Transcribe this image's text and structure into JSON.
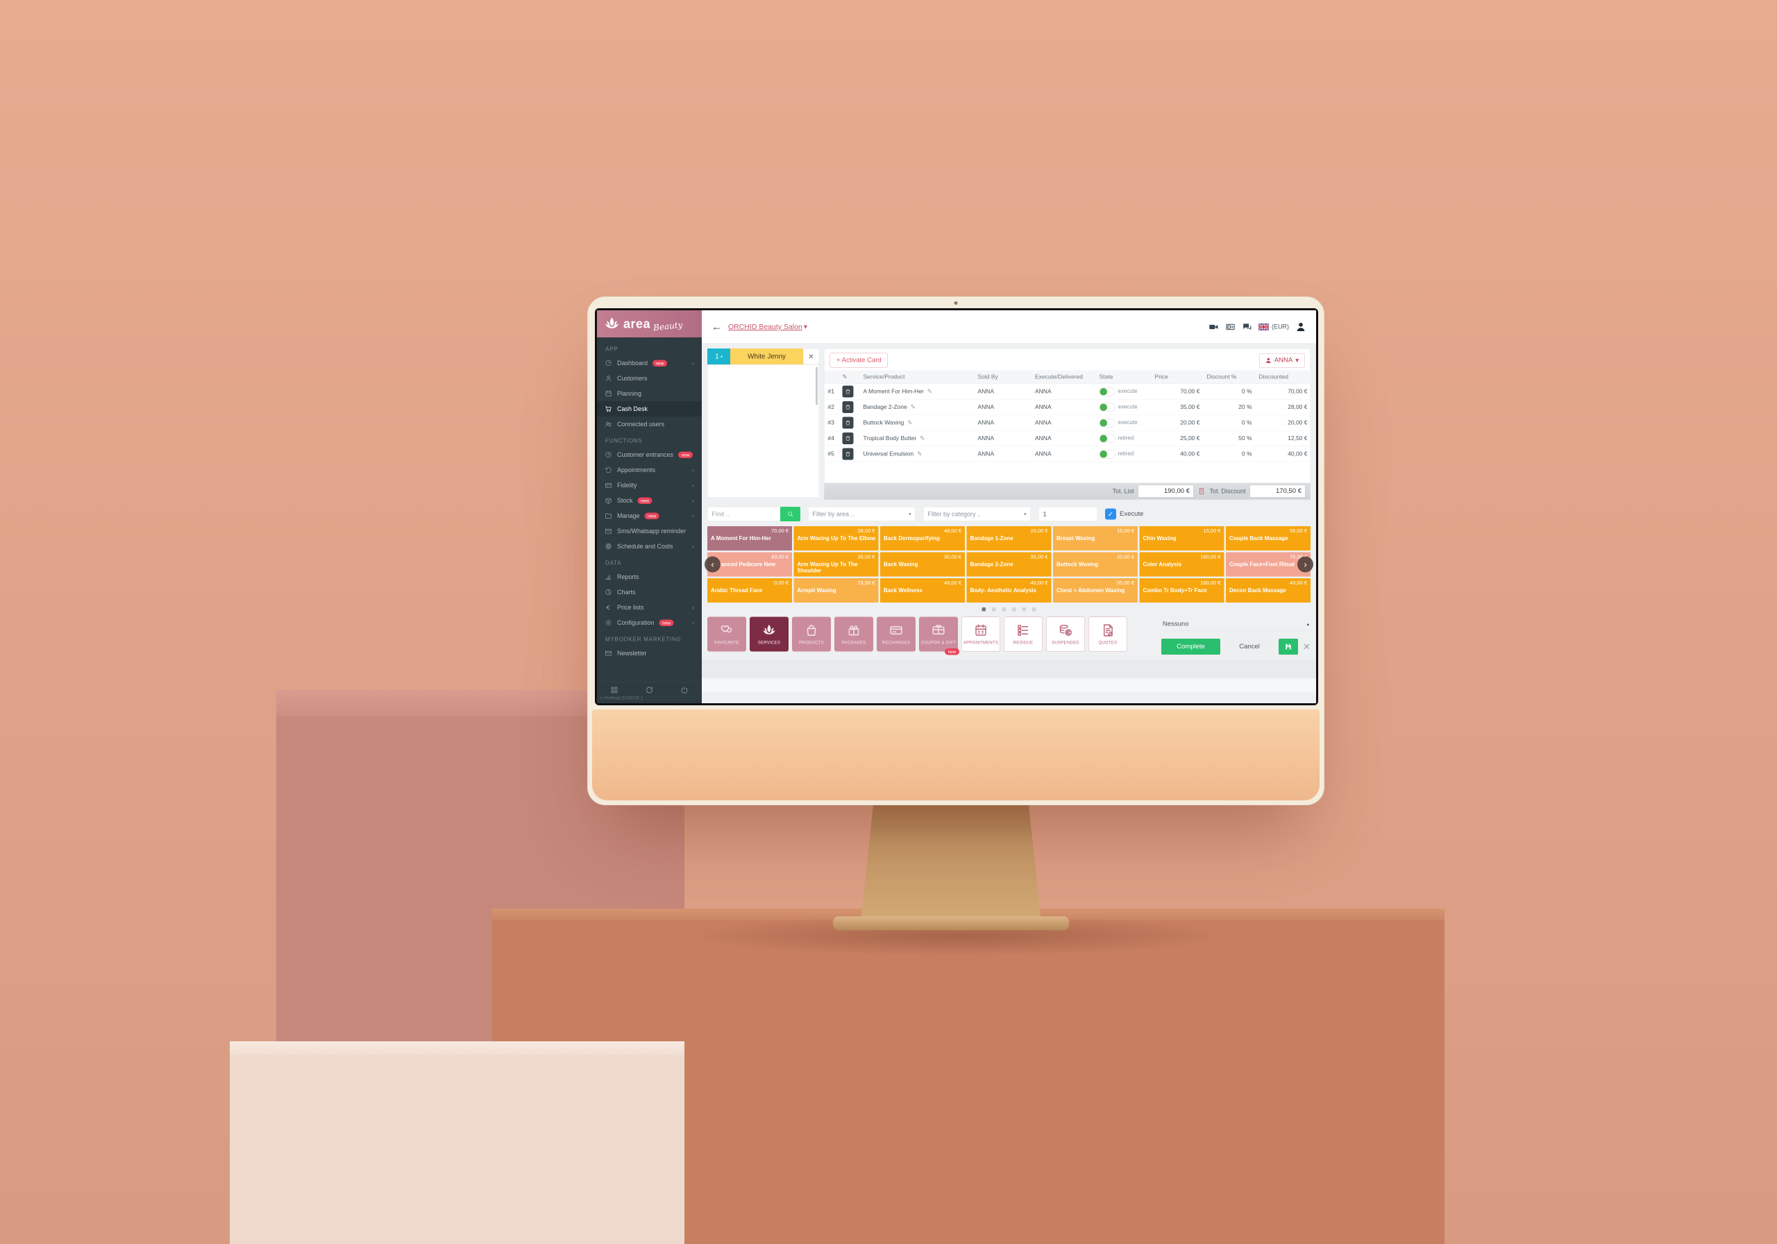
{
  "colors": {
    "accent_pink": "#d9556b",
    "badge_red": "#e8435a",
    "teal": "#1db5cd",
    "yellow": "#fbd35f",
    "green": "#2abf6e",
    "blue": "#2d8ff0",
    "sidebar": "#2e3b41",
    "logo_pink": "#bc7389",
    "tile_orange": "#f7a60f",
    "tile_orange_light": "#f9b24a",
    "tile_mauve": "#ae7381",
    "tile_salmon": "#f2a593",
    "cat_pink": "#ca8c9c",
    "cat_selected": "#7d2c46"
  },
  "brand": {
    "name": "area",
    "script": "Beauty"
  },
  "topbar": {
    "salon": "ORCHID Beauty Salon",
    "caret": "▾",
    "currency": "(EUR)"
  },
  "sidebar": {
    "sections": [
      {
        "label": "APP",
        "items": [
          {
            "icon": "dashboard-icon",
            "label": "Dashboard",
            "badge": "new",
            "chevron": true
          },
          {
            "icon": "customers-icon",
            "label": "Customers"
          },
          {
            "icon": "planning-icon",
            "label": "Planning"
          },
          {
            "icon": "cash-desk-icon",
            "label": "Cash Desk",
            "active": true
          },
          {
            "icon": "connected-users-icon",
            "label": "Connected users"
          }
        ]
      },
      {
        "label": "FUNCTIONS",
        "items": [
          {
            "icon": "customer-entrances-icon",
            "label": "Customer entrances",
            "badge": "new"
          },
          {
            "icon": "appointments-icon",
            "label": "Appointments",
            "chevron": true
          },
          {
            "icon": "fidelity-icon",
            "label": "Fidelity",
            "chevron": true
          },
          {
            "icon": "stock-icon",
            "label": "Stock",
            "badge": "new",
            "chevron": true
          },
          {
            "icon": "manage-icon",
            "label": "Manage",
            "badge": "new",
            "chevron": true
          },
          {
            "icon": "sms-reminder-icon",
            "label": "Sms/Whatsapp reminder"
          },
          {
            "icon": "schedule-costs-icon",
            "label": "Schedule and Costs",
            "chevron": true
          }
        ]
      },
      {
        "label": "DATA",
        "items": [
          {
            "icon": "reports-icon",
            "label": "Reports"
          },
          {
            "icon": "charts-icon",
            "label": "Charts"
          },
          {
            "icon": "price-lists-icon",
            "label": "Price lists",
            "chevron": true
          },
          {
            "icon": "configuration-icon",
            "label": "Configuration",
            "badge": "new",
            "chevron": true
          }
        ]
      },
      {
        "label": "MYBOOKER MARKETING",
        "items": [
          {
            "icon": "newsletter-icon",
            "label": "Newsletter"
          }
        ]
      }
    ],
    "version": "v. PreProd.20250725.1"
  },
  "tabs": {
    "number": "1",
    "caret": "▾",
    "customer": "White Jenny",
    "close": "✕"
  },
  "sale": {
    "activate_card": "+ Activate Card",
    "operator": "ANNA",
    "operator_caret": "▾",
    "columns": {
      "edit": "✎",
      "service": "Service/Product",
      "sold": "Sold By",
      "exec": "Execute/Delivered",
      "state": "State",
      "price": "Price",
      "discount": "Discount %",
      "discounted": "Discounted"
    },
    "rows": [
      {
        "num": "#1",
        "service": "A Moment For Him-Her",
        "sold": "ANNA",
        "exec": "ANNA",
        "state": "execute",
        "price": "70,00 €",
        "discount": "0 %",
        "discounted": "70,00 €"
      },
      {
        "num": "#2",
        "service": "Bandage 2-Zone",
        "sold": "ANNA",
        "exec": "ANNA",
        "state": "execute",
        "price": "35,00 €",
        "discount": "20 %",
        "discounted": "28,00 €"
      },
      {
        "num": "#3",
        "service": "Buttock Waxing",
        "sold": "ANNA",
        "exec": "ANNA",
        "state": "execute",
        "price": "20,00 €",
        "discount": "0 %",
        "discounted": "20,00 €"
      },
      {
        "num": "#4",
        "service": "Tropical Body Butter",
        "sold": "ANNA",
        "exec": "ANNA",
        "state": "retired",
        "price": "25,00 €",
        "discount": "50 %",
        "discounted": "12,50 €"
      },
      {
        "num": "#5",
        "service": "Universal Emulsion",
        "sold": "ANNA",
        "exec": "ANNA",
        "state": "retired",
        "price": "40,00 €",
        "discount": "0 %",
        "discounted": "40,00 €"
      }
    ],
    "totals": {
      "tot_list_label": "Tot. List",
      "tot_list": "190,00 €",
      "tot_discount_label": "Tot. Discount",
      "tot_discount": "170,50 €"
    }
  },
  "filters": {
    "find_placeholder": "Find ..",
    "area_placeholder": "Filter by area ..",
    "category_placeholder": "Filter by category ..",
    "qty": "1",
    "execute_label": "Execute",
    "check": "✓"
  },
  "tiles": {
    "pages": 6,
    "active_page": 1,
    "rows": [
      [
        {
          "name": "A Moment For Him-Her",
          "price": "70,00 €",
          "c": "m"
        },
        {
          "name": "Arm Waxing Up To The Elbow",
          "price": "28,00 €",
          "c": "o"
        },
        {
          "name": "Back Dermopurifying",
          "price": "48,00 €",
          "c": "o"
        },
        {
          "name": "Bandage 1-Zone",
          "price": "20,00 €",
          "c": "o"
        },
        {
          "name": "Breast Waxing",
          "price": "15,00 €",
          "c": "l"
        },
        {
          "name": "Chin Waxing",
          "price": "15,00 €",
          "c": "o"
        },
        {
          "name": "Couple Back Massage",
          "price": "55,00 €",
          "c": "o"
        }
      ],
      [
        {
          "name": "Advanced Pedicure New",
          "price": "43,00 €",
          "c": "s"
        },
        {
          "name": "Arm Waxing Up To The Shoulder",
          "price": "35,00 €",
          "c": "o"
        },
        {
          "name": "Back Waxing",
          "price": "30,00 €",
          "c": "o"
        },
        {
          "name": "Bandage 2-Zone",
          "price": "35,00 €",
          "c": "o"
        },
        {
          "name": "Buttock Waxing",
          "price": "20,00 €",
          "c": "l"
        },
        {
          "name": "Color Analysis",
          "price": "160,00 €",
          "c": "o"
        },
        {
          "name": "Couple Face+Foot Ritual",
          "price": "76,00 €",
          "c": "s"
        }
      ],
      [
        {
          "name": "Arabic Thread Face",
          "price": "0,00 €",
          "c": "o"
        },
        {
          "name": "Armpit Waxing",
          "price": "23,00 €",
          "c": "l"
        },
        {
          "name": "Back Wellness",
          "price": "48,00 €",
          "c": "o"
        },
        {
          "name": "Body- Aesthetic Analysis",
          "price": "40,00 €",
          "c": "o"
        },
        {
          "name": "Chest + Abdomen Waxing",
          "price": "55,00 €",
          "c": "l"
        },
        {
          "name": "Combo Tr Body+Tr Face",
          "price": "160,00 €",
          "c": "o"
        },
        {
          "name": "Decon Back Massage",
          "price": "43,00 €",
          "c": "o"
        }
      ]
    ]
  },
  "categories": [
    {
      "label": "FAVOURITE",
      "icon": "hearts-icon",
      "variant": "pink"
    },
    {
      "label": "SERVICES",
      "icon": "lotus-icon",
      "variant": "selected"
    },
    {
      "label": "PRODUCTS",
      "icon": "bag-icon",
      "variant": "pink"
    },
    {
      "label": "PACKAGES",
      "icon": "gift-icon",
      "variant": "pink"
    },
    {
      "label": "RECHARGES",
      "icon": "credit-card-icon",
      "variant": "pink"
    },
    {
      "label": "COUPON & GIFT",
      "icon": "gift-card-icon",
      "variant": "pink",
      "badge": "new"
    },
    {
      "label": "APPOINTMENTS",
      "icon": "calendar-icon",
      "variant": "white"
    },
    {
      "label": "RESIDUE",
      "icon": "list-icon",
      "variant": "white"
    },
    {
      "label": "SUSPENDED",
      "icon": "coins-icon",
      "variant": "white"
    },
    {
      "label": "QUOTES",
      "icon": "quotes-icon",
      "variant": "white"
    }
  ],
  "checkout": {
    "reason": "Nessuno",
    "reason_caret": "▴",
    "complete": "Complete",
    "cancel": "Cancel",
    "close": "✕"
  }
}
